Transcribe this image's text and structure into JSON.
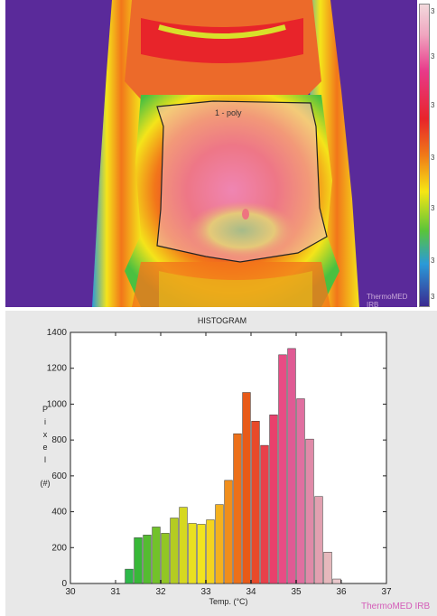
{
  "thermal_image": {
    "roi_label": "1 - poly",
    "watermark": "ThermoMED IRB",
    "colorbar_ticks": [
      "3",
      "3",
      "3",
      "3",
      "3",
      "3",
      "3"
    ]
  },
  "chart_data": {
    "type": "bar",
    "title": "HISTOGRAM",
    "xlabel": "Temp. (°C)",
    "ylabel_letters": [
      "P",
      "i",
      "x",
      "e",
      "l"
    ],
    "ylabel_unit": "(#)",
    "xlim": [
      30,
      37
    ],
    "ylim": [
      0,
      1400
    ],
    "xticks": [
      30,
      31,
      32,
      33,
      34,
      35,
      36,
      37
    ],
    "yticks": [
      0,
      200,
      400,
      600,
      800,
      1000,
      1200,
      1400
    ],
    "bin_width": 0.2,
    "x": [
      31.3,
      31.5,
      31.7,
      31.9,
      32.1,
      32.3,
      32.5,
      32.7,
      32.9,
      33.1,
      33.3,
      33.5,
      33.7,
      33.9,
      34.1,
      34.3,
      34.5,
      34.7,
      34.9,
      35.1,
      35.3,
      35.5,
      35.7,
      35.9
    ],
    "values": [
      80,
      255,
      270,
      315,
      280,
      365,
      425,
      335,
      330,
      355,
      440,
      575,
      835,
      1065,
      905,
      770,
      940,
      1275,
      1310,
      1030,
      805,
      485,
      175,
      25
    ],
    "colors": [
      "#2db84a",
      "#38b838",
      "#55bc30",
      "#72c22a",
      "#92c624",
      "#b4cc22",
      "#d6d820",
      "#eae020",
      "#f2e41e",
      "#f4d41e",
      "#f4b11e",
      "#f08e1c",
      "#ec701a",
      "#e85a18",
      "#e84a2a",
      "#e8404a",
      "#e8406c",
      "#e84c84",
      "#e05a94",
      "#e06fa0",
      "#e08aa8",
      "#e2a0b0",
      "#e6b8bc",
      "#eac8cc"
    ],
    "watermark": "ThermoMED IRB"
  }
}
